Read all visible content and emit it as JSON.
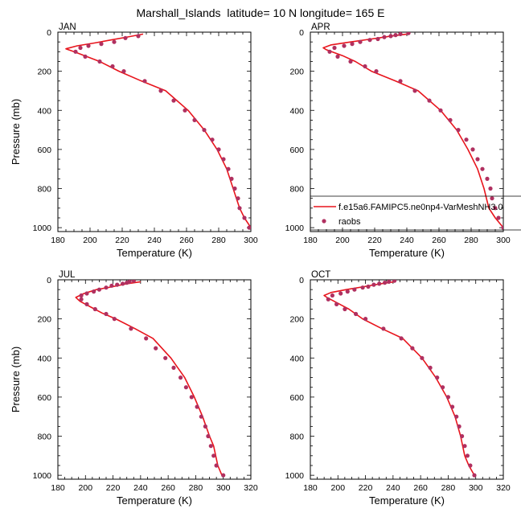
{
  "figure": {
    "title": "Marshall_Islands  latitude= 10 N longitude= 165 E"
  },
  "legend": {
    "model_label": "f.e15a6.FAMIPC5.ne0np4-VarMeshNH3.0",
    "obs_label": "raobs",
    "model_color": "#e8141c",
    "obs_color": "#b03060"
  },
  "chart_data": [
    {
      "type": "line",
      "panel": "JAN",
      "xlabel": "Temperature (K)",
      "ylabel": "Pressure (mb)",
      "xlim": [
        180,
        300
      ],
      "ylim": [
        1020,
        0
      ],
      "xticks": [
        180,
        200,
        220,
        240,
        260,
        280,
        300
      ],
      "yticks": [
        0,
        200,
        400,
        600,
        800,
        1000
      ],
      "series": [
        {
          "name": "f.e15a6.FAMIPC5.ne0np4-VarMeshNH3.0",
          "style": "line",
          "points": [
            [
              233,
              10
            ],
            [
              223,
              25
            ],
            [
              213,
              40
            ],
            [
              203,
              55
            ],
            [
              192,
              70
            ],
            [
              185,
              85
            ],
            [
              190,
              100
            ],
            [
              206,
              150
            ],
            [
              218,
              200
            ],
            [
              232,
              250
            ],
            [
              247,
              300
            ],
            [
              261,
              400
            ],
            [
              271,
              500
            ],
            [
              279,
              600
            ],
            [
              285,
              700
            ],
            [
              289,
              800
            ],
            [
              291,
              850
            ],
            [
              293,
              900
            ],
            [
              296,
              950
            ],
            [
              300,
              1000
            ]
          ]
        },
        {
          "name": "raobs",
          "style": "points",
          "points": [
            [
              230,
              20
            ],
            [
              222,
              30
            ],
            [
              215,
              50
            ],
            [
              207,
              60
            ],
            [
              199,
              70
            ],
            [
              194,
              80
            ],
            [
              191,
              100
            ],
            [
              197,
              125
            ],
            [
              206,
              150
            ],
            [
              214,
              175
            ],
            [
              221,
              200
            ],
            [
              234,
              250
            ],
            [
              244,
              300
            ],
            [
              252,
              350
            ],
            [
              259,
              400
            ],
            [
              265,
              450
            ],
            [
              271,
              500
            ],
            [
              276,
              550
            ],
            [
              280,
              600
            ],
            [
              283,
              650
            ],
            [
              286,
              700
            ],
            [
              288,
              750
            ],
            [
              290,
              800
            ],
            [
              292,
              850
            ],
            [
              293,
              900
            ],
            [
              296,
              950
            ],
            [
              299,
              1000
            ]
          ]
        }
      ]
    },
    {
      "type": "line",
      "panel": "APR",
      "xlabel": "Temperature (K)",
      "ylabel": "",
      "xlim": [
        180,
        300
      ],
      "ylim": [
        1020,
        0
      ],
      "xticks": [
        180,
        200,
        220,
        240,
        260,
        280,
        300
      ],
      "yticks": [
        0,
        200,
        400,
        600,
        800,
        1000
      ],
      "series": [
        {
          "name": "f.e15a6.FAMIPC5.ne0np4-VarMeshNH3.0",
          "style": "line",
          "points": [
            [
              240,
              10
            ],
            [
              230,
              20
            ],
            [
              218,
              35
            ],
            [
              205,
              50
            ],
            [
              193,
              65
            ],
            [
              188,
              80
            ],
            [
              190,
              90
            ],
            [
              200,
              120
            ],
            [
              208,
              150
            ],
            [
              218,
              200
            ],
            [
              233,
              250
            ],
            [
              247,
              300
            ],
            [
              261,
              400
            ],
            [
              271,
              500
            ],
            [
              278,
              600
            ],
            [
              284,
              700
            ],
            [
              288,
              800
            ],
            [
              291,
              900
            ],
            [
              295,
              950
            ],
            [
              300,
              1000
            ]
          ]
        },
        {
          "name": "raobs",
          "style": "points",
          "points": [
            [
              241,
              5
            ],
            [
              236,
              10
            ],
            [
              233,
              15
            ],
            [
              230,
              20
            ],
            [
              226,
              25
            ],
            [
              222,
              35
            ],
            [
              217,
              40
            ],
            [
              211,
              50
            ],
            [
              206,
              60
            ],
            [
              201,
              70
            ],
            [
              195,
              80
            ],
            [
              192,
              100
            ],
            [
              197,
              125
            ],
            [
              205,
              150
            ],
            [
              214,
              175
            ],
            [
              221,
              200
            ],
            [
              236,
              250
            ],
            [
              245,
              300
            ],
            [
              254,
              350
            ],
            [
              261,
              400
            ],
            [
              267,
              450
            ],
            [
              272,
              500
            ],
            [
              277,
              550
            ],
            [
              281,
              600
            ],
            [
              284,
              650
            ],
            [
              287,
              700
            ],
            [
              290,
              750
            ],
            [
              292,
              800
            ],
            [
              293,
              850
            ],
            [
              295,
              900
            ],
            [
              297,
              950
            ],
            [
              300,
              1000
            ]
          ]
        }
      ]
    },
    {
      "type": "line",
      "panel": "JUL",
      "xlabel": "Temperature (K)",
      "ylabel": "Pressure (mb)",
      "xlim": [
        180,
        320
      ],
      "ylim": [
        1020,
        0
      ],
      "xticks": [
        180,
        200,
        220,
        240,
        260,
        280,
        300,
        320
      ],
      "yticks": [
        0,
        200,
        400,
        600,
        800,
        1000
      ],
      "series": [
        {
          "name": "f.e15a6.FAMIPC5.ne0np4-VarMeshNH3.0",
          "style": "line",
          "points": [
            [
              240,
              10
            ],
            [
              230,
              20
            ],
            [
              220,
              35
            ],
            [
              208,
              50
            ],
            [
              199,
              70
            ],
            [
              193,
              90
            ],
            [
              196,
              110
            ],
            [
              204,
              140
            ],
            [
              212,
              170
            ],
            [
              222,
              200
            ],
            [
              236,
              250
            ],
            [
              249,
              300
            ],
            [
              262,
              400
            ],
            [
              272,
              500
            ],
            [
              279,
              600
            ],
            [
              285,
              700
            ],
            [
              290,
              800
            ],
            [
              293,
              850
            ],
            [
              296,
              950
            ],
            [
              299,
              1000
            ]
          ]
        },
        {
          "name": "raobs",
          "style": "points",
          "points": [
            [
              235,
              5
            ],
            [
              232,
              10
            ],
            [
              230,
              15
            ],
            [
              227,
              20
            ],
            [
              223,
              25
            ],
            [
              219,
              30
            ],
            [
              215,
              40
            ],
            [
              210,
              50
            ],
            [
              206,
              60
            ],
            [
              201,
              70
            ],
            [
              197,
              80
            ],
            [
              197,
              100
            ],
            [
              201,
              125
            ],
            [
              207,
              150
            ],
            [
              215,
              175
            ],
            [
              221,
              200
            ],
            [
              233,
              250
            ],
            [
              244,
              300
            ],
            [
              251,
              350
            ],
            [
              258,
              400
            ],
            [
              264,
              450
            ],
            [
              269,
              500
            ],
            [
              273,
              550
            ],
            [
              277,
              600
            ],
            [
              281,
              650
            ],
            [
              284,
              700
            ],
            [
              287,
              750
            ],
            [
              289,
              800
            ],
            [
              291,
              850
            ],
            [
              293,
              900
            ],
            [
              295,
              950
            ],
            [
              300,
              1000
            ]
          ]
        }
      ]
    },
    {
      "type": "line",
      "panel": "OCT",
      "xlabel": "Temperature (K)",
      "ylabel": "",
      "xlim": [
        180,
        320
      ],
      "ylim": [
        1020,
        0
      ],
      "xticks": [
        180,
        200,
        220,
        240,
        260,
        280,
        300,
        320
      ],
      "yticks": [
        0,
        200,
        400,
        600,
        800,
        1000
      ],
      "series": [
        {
          "name": "f.e15a6.FAMIPC5.ne0np4-VarMeshNH3.0",
          "style": "line",
          "points": [
            [
              241,
              10
            ],
            [
              231,
              20
            ],
            [
              219,
              35
            ],
            [
              206,
              50
            ],
            [
              195,
              65
            ],
            [
              190,
              80
            ],
            [
              192,
              90
            ],
            [
              200,
              120
            ],
            [
              208,
              150
            ],
            [
              218,
              200
            ],
            [
              232,
              250
            ],
            [
              247,
              300
            ],
            [
              261,
              400
            ],
            [
              271,
              500
            ],
            [
              279,
              600
            ],
            [
              285,
              700
            ],
            [
              289,
              800
            ],
            [
              292,
              900
            ],
            [
              295,
              950
            ],
            [
              299,
              1000
            ]
          ]
        },
        {
          "name": "raobs",
          "style": "points",
          "points": [
            [
              241,
              5
            ],
            [
              237,
              10
            ],
            [
              234,
              15
            ],
            [
              230,
              20
            ],
            [
              226,
              25
            ],
            [
              222,
              35
            ],
            [
              218,
              40
            ],
            [
              212,
              50
            ],
            [
              207,
              60
            ],
            [
              202,
              70
            ],
            [
              196,
              80
            ],
            [
              193,
              100
            ],
            [
              199,
              125
            ],
            [
              205,
              150
            ],
            [
              213,
              175
            ],
            [
              220,
              200
            ],
            [
              233,
              250
            ],
            [
              246,
              300
            ],
            [
              254,
              350
            ],
            [
              261,
              400
            ],
            [
              267,
              450
            ],
            [
              272,
              500
            ],
            [
              276,
              550
            ],
            [
              280,
              600
            ],
            [
              283,
              650
            ],
            [
              286,
              700
            ],
            [
              288,
              750
            ],
            [
              290,
              800
            ],
            [
              292,
              850
            ],
            [
              294,
              900
            ],
            [
              296,
              950
            ],
            [
              299,
              1000
            ]
          ]
        }
      ]
    }
  ]
}
